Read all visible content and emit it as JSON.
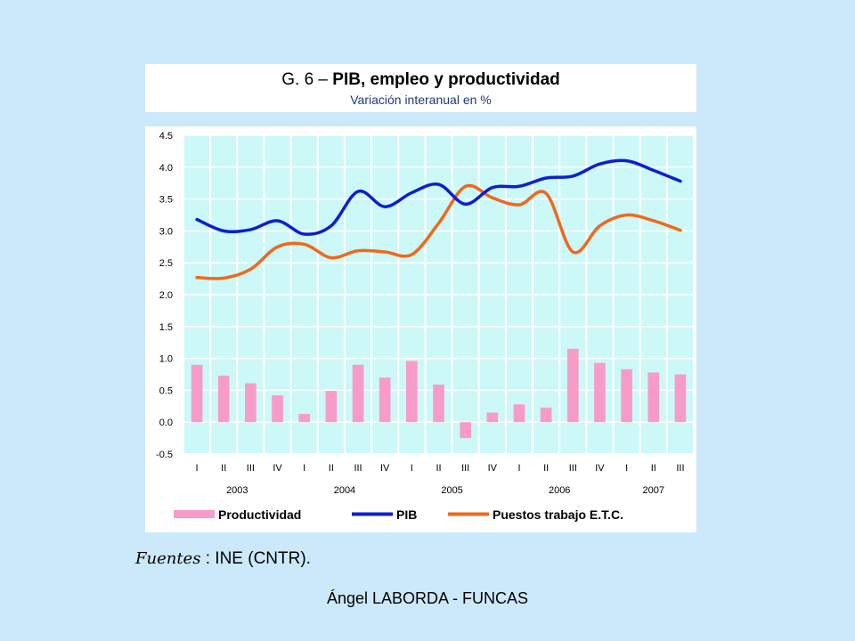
{
  "title": {
    "prefix": "G. 6 – ",
    "main": "PIB, empleo y productividad",
    "subtitle": "Variación interanual en %"
  },
  "source": {
    "label": "Fuentes",
    "text": " : INE (CNTR)."
  },
  "footer": "Ángel LABORDA - FUNCAS",
  "colors": {
    "plot_background": "#ccf8f8",
    "grid": "#ffffff",
    "productividad": "#f79cc9",
    "pib": "#0c1fd1",
    "empleo": "#f1681c"
  },
  "chart_data": {
    "type": "bar",
    "categories": [
      "I",
      "II",
      "III",
      "IV",
      "I",
      "II",
      "III",
      "IV",
      "I",
      "II",
      "III",
      "IV",
      "I",
      "II",
      "III",
      "IV",
      "I",
      "II",
      "III"
    ],
    "years": [
      {
        "label": "2003",
        "start": 0,
        "end": 3
      },
      {
        "label": "2004",
        "start": 4,
        "end": 7
      },
      {
        "label": "2005",
        "start": 8,
        "end": 11
      },
      {
        "label": "2006",
        "start": 12,
        "end": 15
      },
      {
        "label": "2007",
        "start": 16,
        "end": 18
      }
    ],
    "ylim": [
      -0.5,
      4.5
    ],
    "yticks": [
      "-0.5",
      "0.0",
      "0.5",
      "1.0",
      "1.5",
      "2.0",
      "2.5",
      "3.0",
      "3.5",
      "4.0",
      "4.5"
    ],
    "ytick_values": [
      -0.5,
      0,
      0.5,
      1,
      1.5,
      2,
      2.5,
      3,
      3.5,
      4,
      4.5
    ],
    "grid": true,
    "legend_position": "bottom",
    "series": [
      {
        "name": "Productividad",
        "kind": "bar",
        "values": [
          0.9,
          0.73,
          0.61,
          0.42,
          0.13,
          0.49,
          0.9,
          0.7,
          0.96,
          0.59,
          -0.25,
          0.15,
          0.28,
          0.23,
          1.15,
          0.93,
          0.83,
          0.78,
          0.75
        ]
      },
      {
        "name": "PIB",
        "kind": "line",
        "values": [
          3.18,
          3.0,
          3.02,
          3.16,
          2.95,
          3.08,
          3.62,
          3.38,
          3.6,
          3.73,
          3.42,
          3.68,
          3.7,
          3.83,
          3.86,
          4.05,
          4.1,
          3.95,
          3.78
        ]
      },
      {
        "name": "Puestos trabajo E.T.C.",
        "kind": "line",
        "values": [
          2.27,
          2.26,
          2.4,
          2.75,
          2.79,
          2.58,
          2.69,
          2.67,
          2.63,
          3.12,
          3.7,
          3.52,
          3.41,
          3.59,
          2.67,
          3.08,
          3.25,
          3.16,
          3.01
        ]
      }
    ]
  }
}
